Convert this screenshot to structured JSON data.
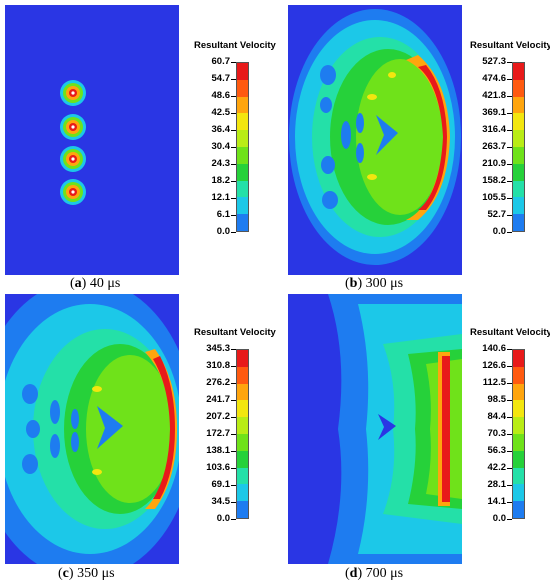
{
  "legend_colors": [
    "#1e2fd8",
    "#1e7cf0",
    "#1cc8e8",
    "#24e0a8",
    "#26d13a",
    "#6fe21a",
    "#b9ec16",
    "#f3e60f",
    "#ffa50e",
    "#ff5a10",
    "#e81a1a"
  ],
  "panels": [
    {
      "id": "a",
      "caption_letter": "a",
      "caption_text": " 40 μs",
      "legend_title": "Resultant Velocity",
      "ticks": [
        "60.7",
        "54.7",
        "48.6",
        "42.5",
        "36.4",
        "30.4",
        "24.3",
        "18.2",
        "12.1",
        "6.1",
        "0.0"
      ]
    },
    {
      "id": "b",
      "caption_letter": "b",
      "caption_text": " 300 μs",
      "legend_title": "Resultant Velocity",
      "ticks": [
        "527.3",
        "474.6",
        "421.8",
        "369.1",
        "316.4",
        "263.7",
        "210.9",
        "158.2",
        "105.5",
        "52.7",
        "0.0"
      ]
    },
    {
      "id": "c",
      "caption_letter": "c",
      "caption_text": " 350 μs",
      "legend_title": "Resultant Velocity",
      "ticks": [
        "345.3",
        "310.8",
        "276.2",
        "241.7",
        "207.2",
        "172.7",
        "138.1",
        "103.6",
        "69.1",
        "34.5",
        "0.0"
      ]
    },
    {
      "id": "d",
      "caption_letter": "d",
      "caption_text": " 700 μs",
      "legend_title": "Resultant Velocity",
      "ticks": [
        "140.6",
        "126.6",
        "112.5",
        "98.5",
        "84.4",
        "70.3",
        "56.3",
        "42.2",
        "28.1",
        "14.1",
        "0.0"
      ]
    }
  ]
}
